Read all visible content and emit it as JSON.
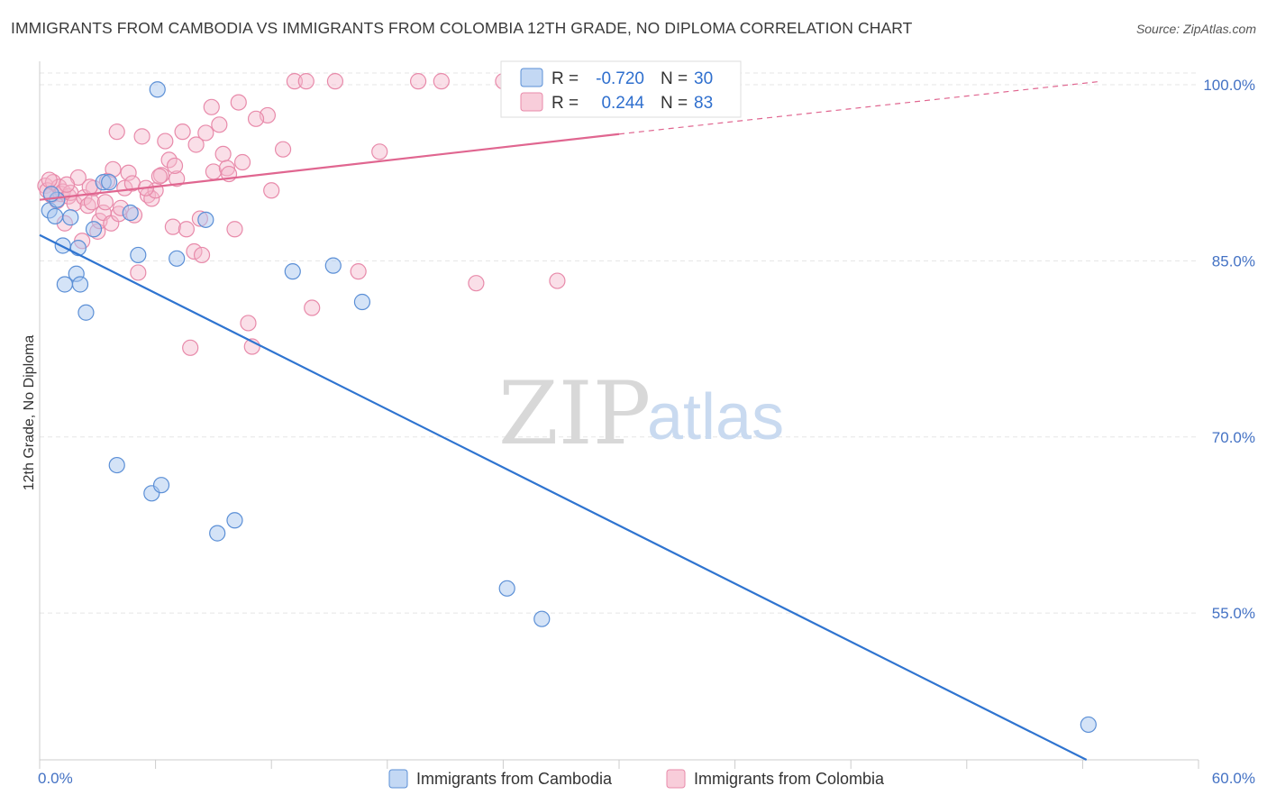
{
  "title": "IMMIGRANTS FROM CAMBODIA VS IMMIGRANTS FROM COLOMBIA 12TH GRADE, NO DIPLOMA CORRELATION CHART",
  "source": "Source: ZipAtlas.com",
  "watermark": {
    "zip": "ZIP",
    "atlas": "atlas"
  },
  "colors": {
    "cambodia_fill": "#a9c8f0",
    "cambodia_stroke": "#5b8fd6",
    "cambodia_line": "#2f74d0",
    "colombia_fill": "#f5b8cb",
    "colombia_stroke": "#e88aaa",
    "colombia_line": "#e06690",
    "grid": "#e5e5e5",
    "axis_text": "#4472c4"
  },
  "legend_box": {
    "rows": [
      {
        "r_label": "R =",
        "r_value": "-0.720",
        "n_label": "N =",
        "n_value": "30"
      },
      {
        "r_label": "R =",
        "r_value": "0.244",
        "n_label": "N =",
        "n_value": "83"
      }
    ]
  },
  "chart_data": {
    "type": "scatter",
    "title": "IMMIGRANTS FROM CAMBODIA VS IMMIGRANTS FROM COLOMBIA 12TH GRADE, NO DIPLOMA CORRELATION CHART",
    "xlabel": "",
    "ylabel": "12th Grade, No Diploma",
    "xlim": [
      0,
      60
    ],
    "ylim": [
      42.5,
      102
    ],
    "x_tick_labels": [
      "0.0%",
      "60.0%"
    ],
    "y_ticks": [
      55,
      70,
      85,
      100
    ],
    "y_tick_labels": [
      "55.0%",
      "70.0%",
      "85.0%",
      "100.0%"
    ],
    "grid": true,
    "legend_position": "bottom",
    "series": [
      {
        "name": "Immigrants from Cambodia",
        "points": [
          [
            0.5,
            89.3
          ],
          [
            0.8,
            88.8
          ],
          [
            0.9,
            90.2
          ],
          [
            1.2,
            86.3
          ],
          [
            1.3,
            83.0
          ],
          [
            1.6,
            88.7
          ],
          [
            1.9,
            83.9
          ],
          [
            2.0,
            86.1
          ],
          [
            2.1,
            83.0
          ],
          [
            2.4,
            80.6
          ],
          [
            2.8,
            87.7
          ],
          [
            3.3,
            91.7
          ],
          [
            4.0,
            67.6
          ],
          [
            4.7,
            89.1
          ],
          [
            5.1,
            85.5
          ],
          [
            5.8,
            65.2
          ],
          [
            6.1,
            99.6
          ],
          [
            6.3,
            65.9
          ],
          [
            7.1,
            85.2
          ],
          [
            8.6,
            88.5
          ],
          [
            9.2,
            61.8
          ],
          [
            10.1,
            62.9
          ],
          [
            13.1,
            84.1
          ],
          [
            15.2,
            84.6
          ],
          [
            16.7,
            81.5
          ],
          [
            24.2,
            57.1
          ],
          [
            26.0,
            54.5
          ],
          [
            54.3,
            45.5
          ],
          [
            0.6,
            90.7
          ],
          [
            3.6,
            91.7
          ]
        ]
      },
      {
        "name": "Immigrants from Colombia",
        "points": [
          [
            0.3,
            91.4
          ],
          [
            0.4,
            91.0
          ],
          [
            0.6,
            90.6
          ],
          [
            0.7,
            91.7
          ],
          [
            0.9,
            90.1
          ],
          [
            1.0,
            91.3
          ],
          [
            1.1,
            90.7
          ],
          [
            1.2,
            90.9
          ],
          [
            1.3,
            88.2
          ],
          [
            1.5,
            90.5
          ],
          [
            1.6,
            90.8
          ],
          [
            1.8,
            89.9
          ],
          [
            2.0,
            92.1
          ],
          [
            2.2,
            86.7
          ],
          [
            2.3,
            90.4
          ],
          [
            2.5,
            89.7
          ],
          [
            2.7,
            90.0
          ],
          [
            2.8,
            91.2
          ],
          [
            3.0,
            87.5
          ],
          [
            3.1,
            88.4
          ],
          [
            3.3,
            89.1
          ],
          [
            3.5,
            91.8
          ],
          [
            3.7,
            88.2
          ],
          [
            3.8,
            92.8
          ],
          [
            4.0,
            96.0
          ],
          [
            4.1,
            89.0
          ],
          [
            4.4,
            91.2
          ],
          [
            4.6,
            92.5
          ],
          [
            4.8,
            91.6
          ],
          [
            4.9,
            88.9
          ],
          [
            5.1,
            84.0
          ],
          [
            5.3,
            95.6
          ],
          [
            5.6,
            90.6
          ],
          [
            5.8,
            90.3
          ],
          [
            6.0,
            91.0
          ],
          [
            6.3,
            92.3
          ],
          [
            6.5,
            95.2
          ],
          [
            6.7,
            93.6
          ],
          [
            6.9,
            87.9
          ],
          [
            7.1,
            92.0
          ],
          [
            7.4,
            96.0
          ],
          [
            7.6,
            87.7
          ],
          [
            7.8,
            77.6
          ],
          [
            8.0,
            85.8
          ],
          [
            8.1,
            94.9
          ],
          [
            8.4,
            85.5
          ],
          [
            8.6,
            95.9
          ],
          [
            8.9,
            98.1
          ],
          [
            9.0,
            92.6
          ],
          [
            9.3,
            96.6
          ],
          [
            9.5,
            94.1
          ],
          [
            9.7,
            92.9
          ],
          [
            10.1,
            87.7
          ],
          [
            10.3,
            98.5
          ],
          [
            10.5,
            93.4
          ],
          [
            10.8,
            79.7
          ],
          [
            11.0,
            77.7
          ],
          [
            11.8,
            97.4
          ],
          [
            12.6,
            94.5
          ],
          [
            13.2,
            100.3
          ],
          [
            13.8,
            100.3
          ],
          [
            14.1,
            81.0
          ],
          [
            15.3,
            100.3
          ],
          [
            16.5,
            84.1
          ],
          [
            17.6,
            94.3
          ],
          [
            19.6,
            100.3
          ],
          [
            20.8,
            100.3
          ],
          [
            22.6,
            83.1
          ],
          [
            24.0,
            100.3
          ],
          [
            26.8,
            83.3
          ],
          [
            27.3,
            100.3
          ],
          [
            0.5,
            91.9
          ],
          [
            1.4,
            91.5
          ],
          [
            2.6,
            91.3
          ],
          [
            3.4,
            90.0
          ],
          [
            4.2,
            89.5
          ],
          [
            5.5,
            91.2
          ],
          [
            6.2,
            92.2
          ],
          [
            7.0,
            93.1
          ],
          [
            8.3,
            88.6
          ],
          [
            9.8,
            92.4
          ],
          [
            11.2,
            97.1
          ],
          [
            12.0,
            91.0
          ]
        ]
      }
    ],
    "trend_lines": [
      {
        "series": "Immigrants from Cambodia",
        "from": [
          0,
          87.2
        ],
        "to": [
          54.2,
          42.5
        ]
      },
      {
        "series": "Immigrants from Colombia",
        "solid_from": [
          0,
          90.2
        ],
        "solid_to": [
          30,
          95.8
        ],
        "dashed_to": [
          55,
          100.3
        ]
      }
    ]
  }
}
